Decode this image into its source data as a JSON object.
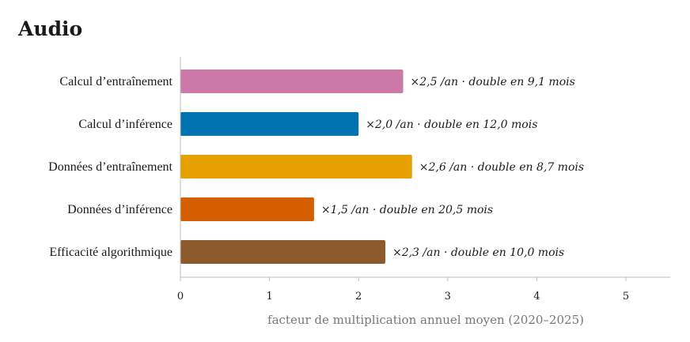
{
  "chart_data": {
    "type": "bar",
    "orientation": "horizontal",
    "title": "Audio",
    "categories": [
      "Calcul d’entraînement",
      "Calcul d’inférence",
      "Données d’entraînement",
      "Données d’inférence",
      "Efficacité algorithmique"
    ],
    "values": [
      2.5,
      2.0,
      2.6,
      1.5,
      2.3
    ],
    "value_labels": [
      "×2,5 /an · double en 9,1 mois",
      "×2,0 /an · double en 12,0 mois",
      "×2,6 /an · double en 8,7 mois",
      "×1,5 /an · double en 20,5 mois",
      "×2,3 /an · double en 10,0 mois"
    ],
    "colors": [
      "#cc79a7",
      "#0072b2",
      "#e69f00",
      "#d55e00",
      "#8c5a2b"
    ],
    "xlabel": "facteur de multiplication annuel moyen (2020–2025)",
    "ylabel": "",
    "xlim": [
      0,
      5.5
    ],
    "xticks": [
      0,
      1,
      2,
      3,
      4,
      5
    ],
    "grid": false,
    "legend": "none"
  }
}
